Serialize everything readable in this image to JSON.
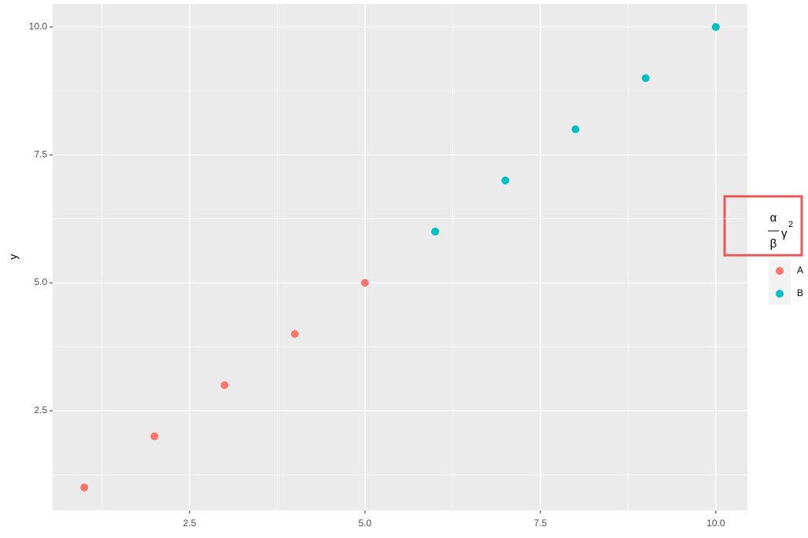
{
  "chart_data": {
    "type": "scatter",
    "y_label": "y",
    "legend_title": {
      "numerator": "α",
      "denominator": "β",
      "term": "γ",
      "superscript": "2"
    },
    "xlim": [
      0.55,
      10.45
    ],
    "ylim": [
      0.55,
      10.45
    ],
    "xticks": [
      {
        "value": 2.5,
        "label": "2.5"
      },
      {
        "value": 5,
        "label": "5.0"
      },
      {
        "value": 7.5,
        "label": "7.5"
      },
      {
        "value": 10,
        "label": "10.0"
      }
    ],
    "yticks": [
      {
        "value": 2.5,
        "label": "2.5"
      },
      {
        "value": 5,
        "label": "5.0"
      },
      {
        "value": 7.5,
        "label": "7.5"
      },
      {
        "value": 10,
        "label": "10.0"
      }
    ],
    "x_minor_breaks": [
      1.25,
      3.75,
      6.25,
      8.75
    ],
    "y_minor_breaks": [
      1.25,
      3.75,
      6.25,
      8.75
    ],
    "grid": true,
    "legend_position": "right",
    "series": [
      {
        "name": "A",
        "color": "#F8766D",
        "x": [
          1,
          2,
          3,
          4,
          5
        ],
        "values": [
          1,
          2,
          3,
          4,
          5
        ]
      },
      {
        "name": "B",
        "color": "#00BFC4",
        "x": [
          6,
          7,
          8,
          9,
          10
        ],
        "values": [
          6,
          7,
          8,
          9,
          10
        ]
      }
    ]
  }
}
